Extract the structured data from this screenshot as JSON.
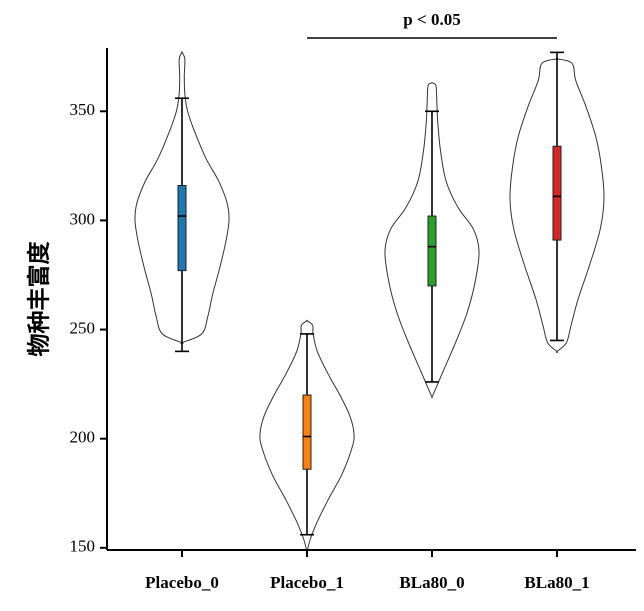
{
  "chart_data": {
    "type": "violin",
    "ylabel": "物种丰富度",
    "xlabel": "",
    "ylim": [
      149,
      379
    ],
    "yticks": [
      150,
      200,
      250,
      300,
      350
    ],
    "categories": [
      "Placebo_0",
      "Placebo_1",
      "BLa80_0",
      "BLa80_1"
    ],
    "groups": [
      {
        "name": "Placebo_0",
        "color": "#1f77b4",
        "whisker_low": 240,
        "q1": 277,
        "median": 302,
        "q3": 316,
        "whisker_high": 356,
        "violin_min": 244,
        "violin_max": 377,
        "density": [
          [
            244,
            0.0
          ],
          [
            248,
            0.42
          ],
          [
            256,
            0.55
          ],
          [
            266,
            0.65
          ],
          [
            278,
            0.8
          ],
          [
            290,
            0.93
          ],
          [
            300,
            1.0
          ],
          [
            308,
            0.96
          ],
          [
            318,
            0.78
          ],
          [
            328,
            0.52
          ],
          [
            340,
            0.28
          ],
          [
            350,
            0.12
          ],
          [
            358,
            0.06
          ],
          [
            366,
            0.05
          ],
          [
            374,
            0.06
          ],
          [
            377,
            0.0
          ]
        ]
      },
      {
        "name": "Placebo_1",
        "color": "#ff7f0e",
        "whisker_low": 156,
        "q1": 186,
        "median": 201,
        "q3": 220,
        "whisker_high": 248,
        "violin_min": 148,
        "violin_max": 254,
        "density": [
          [
            148,
            0.0
          ],
          [
            154,
            0.07
          ],
          [
            162,
            0.22
          ],
          [
            172,
            0.45
          ],
          [
            184,
            0.75
          ],
          [
            196,
            0.96
          ],
          [
            202,
            1.0
          ],
          [
            210,
            0.92
          ],
          [
            220,
            0.7
          ],
          [
            230,
            0.44
          ],
          [
            240,
            0.22
          ],
          [
            248,
            0.13
          ],
          [
            252,
            0.12
          ],
          [
            254,
            0.0
          ]
        ]
      },
      {
        "name": "BLa80_0",
        "color": "#2ca02c",
        "whisker_low": 226,
        "q1": 270,
        "median": 288,
        "q3": 302,
        "whisker_high": 350,
        "violin_min": 219,
        "violin_max": 363,
        "density": [
          [
            219,
            0.0
          ],
          [
            222,
            0.06
          ],
          [
            230,
            0.22
          ],
          [
            244,
            0.5
          ],
          [
            258,
            0.75
          ],
          [
            272,
            0.92
          ],
          [
            286,
            1.0
          ],
          [
            296,
            0.88
          ],
          [
            306,
            0.55
          ],
          [
            318,
            0.3
          ],
          [
            332,
            0.18
          ],
          [
            346,
            0.12
          ],
          [
            356,
            0.1
          ],
          [
            362,
            0.08
          ],
          [
            363,
            0.0
          ]
        ]
      },
      {
        "name": "BLa80_1",
        "color": "#d62728",
        "whisker_low": 245,
        "q1": 291,
        "median": 311,
        "q3": 334,
        "whisker_high": 377,
        "violin_min": 240,
        "violin_max": 374,
        "density": [
          [
            240,
            0.0
          ],
          [
            244,
            0.2
          ],
          [
            252,
            0.3
          ],
          [
            264,
            0.45
          ],
          [
            280,
            0.7
          ],
          [
            296,
            0.92
          ],
          [
            310,
            1.0
          ],
          [
            324,
            0.95
          ],
          [
            338,
            0.83
          ],
          [
            352,
            0.62
          ],
          [
            364,
            0.4
          ],
          [
            372,
            0.32
          ],
          [
            374,
            0.0
          ]
        ]
      }
    ],
    "annotation": {
      "text": "p < 0.05",
      "from": "Placebo_1",
      "to": "BLa80_1"
    }
  }
}
